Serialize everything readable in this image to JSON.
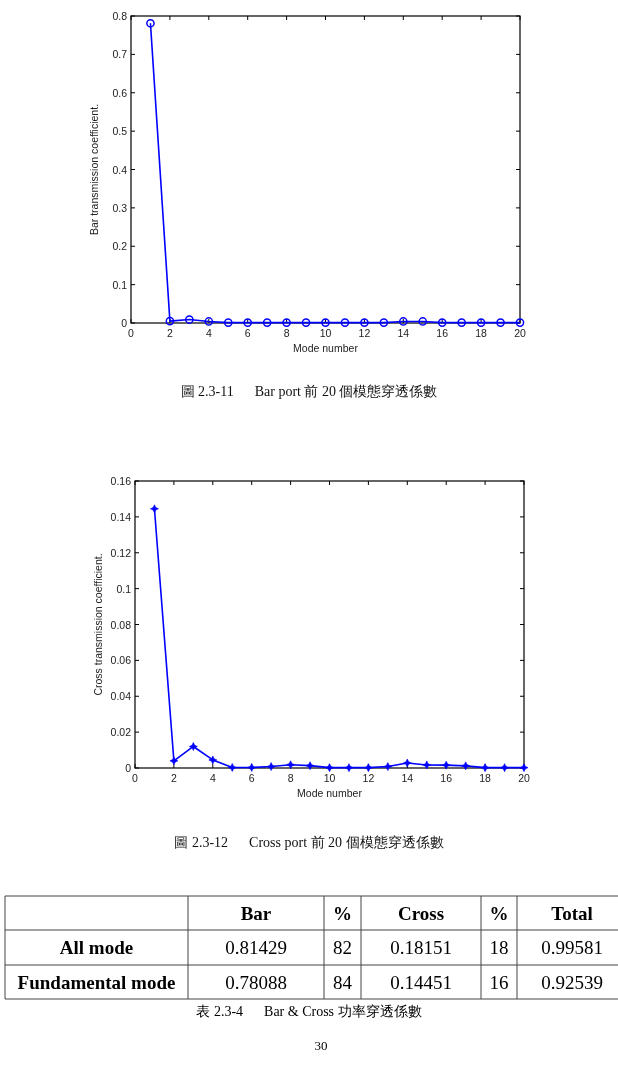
{
  "chart_data": [
    {
      "type": "line",
      "title": "圖 2.3-11      Bar port 前 20 個模態穿透係數",
      "xlabel": "Mode number",
      "ylabel": "Bar transmission coefficient.",
      "x": [
        1,
        2,
        3,
        4,
        5,
        6,
        7,
        8,
        9,
        10,
        11,
        12,
        13,
        14,
        15,
        16,
        17,
        18,
        19,
        20
      ],
      "series": [
        {
          "color": "#0000ff",
          "values": [
            0.781,
            0.005,
            0.009,
            0.004,
            0.001,
            0.001,
            0.001,
            0.001,
            0.001,
            0.001,
            0.001,
            0.001,
            0.001,
            0.004,
            0.004,
            0.001,
            0.001,
            0.001,
            0.001,
            0.001
          ]
        }
      ],
      "xlim": [
        0,
        20
      ],
      "xticks": [
        0,
        2,
        4,
        6,
        8,
        10,
        12,
        14,
        16,
        18,
        20
      ],
      "ylim": [
        0,
        0.8
      ],
      "yticks": [
        0,
        0.1,
        0.2,
        0.3,
        0.4,
        0.5,
        0.6,
        0.7,
        0.8
      ],
      "marker": "circle",
      "line_style": "solid"
    },
    {
      "type": "line",
      "title": "圖 2.3-12      Cross port 前 20 個模態穿透係數",
      "xlabel": "Mode number",
      "ylabel": "Cross transmission coefficient.",
      "x": [
        1,
        2,
        3,
        4,
        5,
        6,
        7,
        8,
        9,
        10,
        11,
        12,
        13,
        14,
        15,
        16,
        17,
        18,
        19,
        20
      ],
      "series": [
        {
          "color": "#0000ff",
          "values": [
            0.1445,
            0.004,
            0.012,
            0.0045,
            0.0003,
            0.0003,
            0.0008,
            0.0018,
            0.0013,
            0.0002,
            0.0002,
            0.0002,
            0.0008,
            0.0028,
            0.0017,
            0.0016,
            0.0012,
            0.0002,
            0.0002,
            0.0002
          ]
        }
      ],
      "xlim": [
        0,
        20
      ],
      "xticks": [
        0,
        2,
        4,
        6,
        8,
        10,
        12,
        14,
        16,
        18,
        20
      ],
      "ylim": [
        0,
        0.16
      ],
      "yticks": [
        0,
        0.02,
        0.04,
        0.06,
        0.08,
        0.1,
        0.12,
        0.14,
        0.16
      ],
      "marker": "star",
      "line_style": "solid"
    },
    {
      "type": "other",
      "title": "表 2.3-4      Bar & Cross 功率穿透係數",
      "annotations": [
        "Bar",
        "%",
        "Cross",
        "%",
        "Total",
        "All mode",
        "0.81429",
        "82",
        "0.18151",
        "18",
        "0.99581",
        "Fundamental mode",
        "0.78088",
        "84",
        "0.14451",
        "16",
        "0.92539",
        "30"
      ]
    }
  ]
}
